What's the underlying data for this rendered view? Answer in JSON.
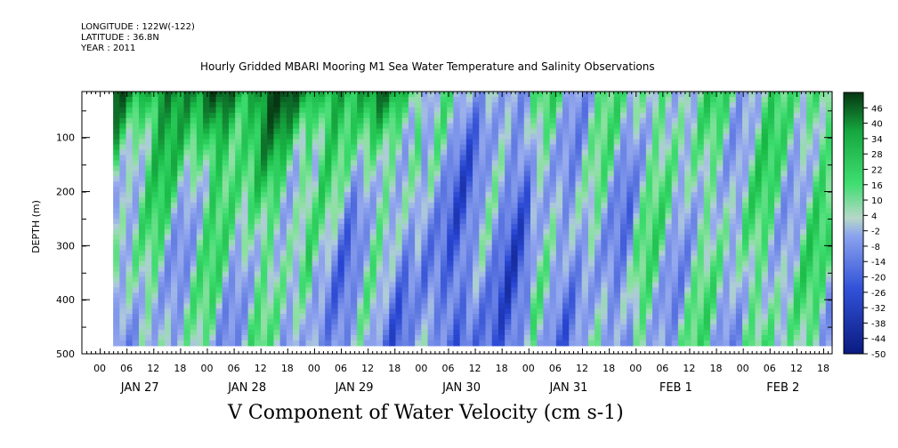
{
  "header": {
    "longitude": "LONGITUDE : 122W(-122)",
    "latitude": "LATITUDE : 36.8N",
    "year": "YEAR : 2011"
  },
  "chart_data": {
    "type": "heatmap",
    "title": "Hourly Gridded MBARI Mooring M1 Sea Water Temperature and Salinity Observations",
    "bottom_title": "V Component of Water Velocity (cm s-1)",
    "xlabel": "",
    "ylabel": "DEPTH (m)",
    "ylim": [
      500,
      15
    ],
    "y_ticks": [
      100,
      200,
      300,
      400,
      500
    ],
    "y_tick_labels": [
      "100",
      "200",
      "300",
      "400",
      "500"
    ],
    "x_hour_labels": [
      "00",
      "06",
      "12",
      "18",
      "00",
      "06",
      "12",
      "18",
      "00",
      "06",
      "12",
      "18",
      "00",
      "06",
      "12",
      "18",
      "00",
      "06",
      "12",
      "18",
      "00",
      "06",
      "12",
      "18",
      "00",
      "06",
      "12",
      "18"
    ],
    "x_day_labels": [
      "JAN 27",
      "JAN 28",
      "JAN 29",
      "JAN 30",
      "JAN 31",
      "FEB  1",
      "FEB  2"
    ],
    "x_range_hours": [
      -4,
      164
    ],
    "data_start_hour": 3,
    "data_depth_range": [
      15,
      485
    ],
    "colorbar_labels": [
      "46",
      "40",
      "34",
      "28",
      "22",
      "16",
      "10",
      "4",
      "-2",
      "-8",
      "-14",
      "-20",
      "-26",
      "-32",
      "-38",
      "-44",
      "-50"
    ],
    "colorbar_range": [
      -50,
      52
    ],
    "grid_shown": false,
    "legend_placement": "right",
    "profile_segments": [
      {
        "day": "JAN 27",
        "surface_v": 32,
        "deep_v": -6
      },
      {
        "day": "JAN 28",
        "surface_v": 38,
        "deep_v": -4
      },
      {
        "day": "JAN 29",
        "surface_v": 26,
        "deep_v": -14
      },
      {
        "day": "JAN 30",
        "surface_v": -4,
        "deep_v": -20
      },
      {
        "day": "JAN 31",
        "surface_v": 2,
        "deep_v": -10
      },
      {
        "day": "FEB  1",
        "surface_v": 4,
        "deep_v": -2
      },
      {
        "day": "FEB  2",
        "surface_v": 6,
        "deep_v": 2
      }
    ],
    "colors": {
      "high": "#073d17",
      "mid_positive": "#22d455",
      "near_zero": "#9dd8b8",
      "mid_negative": "#7d92e8",
      "low": "#0a1a80"
    }
  }
}
